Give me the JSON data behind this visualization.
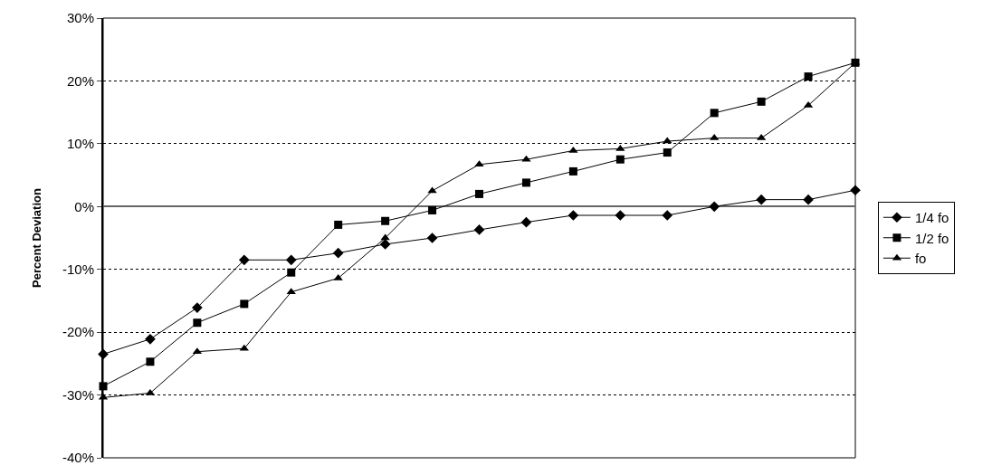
{
  "chart_data": {
    "type": "line",
    "ylabel": "Percent Deviation",
    "categories": [
      null,
      null,
      null,
      null,
      null,
      null,
      null,
      null,
      null,
      null,
      null,
      null,
      null,
      null,
      null,
      null,
      null
    ],
    "series": [
      {
        "name": "1/4 fo",
        "color": "#000000",
        "marker": "diamond",
        "values": [
          -23.5,
          -21.1,
          -16.1,
          -8.5,
          -8.5,
          -7.4,
          -6.0,
          -5.0,
          -3.7,
          -2.5,
          -1.4,
          -1.4,
          -1.4,
          0,
          1.1,
          1.1,
          2.6
        ]
      },
      {
        "name": "1/2 fo",
        "color": "#000000",
        "marker": "square",
        "values": [
          -28.6,
          -24.7,
          -18.5,
          -15.5,
          -10.5,
          -2.9,
          -2.3,
          -0.6,
          2.0,
          3.8,
          5.6,
          7.5,
          8.6,
          14.9,
          16.7,
          20.7,
          22.9
        ]
      },
      {
        "name": "fo",
        "color": "#000000",
        "marker": "triangle",
        "values": [
          -30.4,
          -29.7,
          -23.1,
          -22.6,
          -13.6,
          -11.4,
          -5.0,
          2.5,
          6.7,
          7.5,
          8.9,
          9.2,
          10.4,
          10.9,
          10.9,
          16.1,
          22.9
        ]
      }
    ],
    "ylim": [
      -40,
      30
    ],
    "yticks": [
      {
        "value": -40,
        "label": "-40%"
      },
      {
        "value": -30,
        "label": "-30%"
      },
      {
        "value": -20,
        "label": "-20%"
      },
      {
        "value": -10,
        "label": "-10%"
      },
      {
        "value": 0,
        "label": "0%"
      },
      {
        "value": 10,
        "label": "10%"
      },
      {
        "value": 20,
        "label": "20%"
      },
      {
        "value": 30,
        "label": "30%"
      }
    ],
    "grid": "y",
    "legend": "right",
    "tick_labels": "y",
    "line_style": "solid"
  }
}
